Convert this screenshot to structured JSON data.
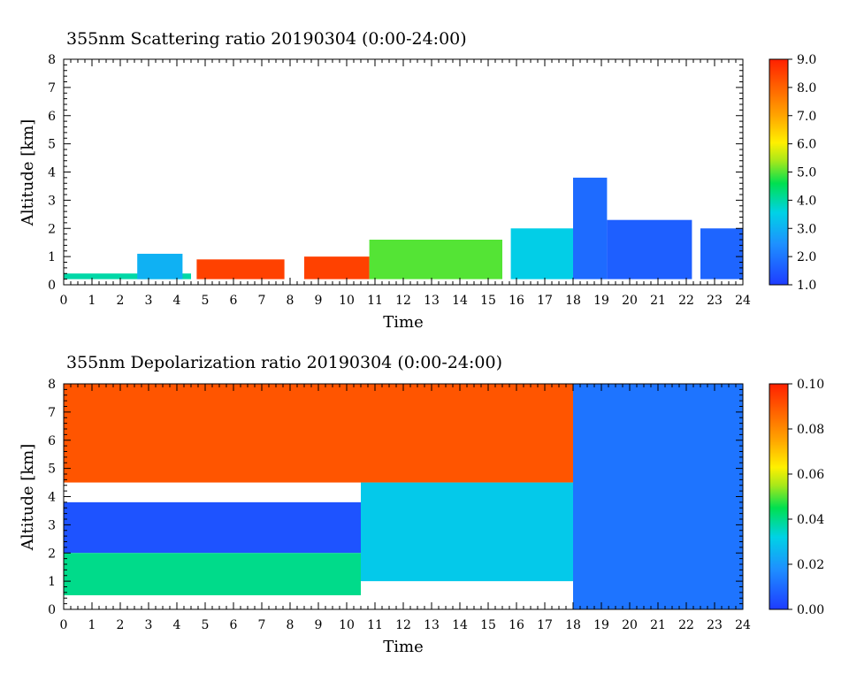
{
  "chart_data": [
    {
      "type": "heatmap",
      "title": "355nm Scattering ratio  20190304 (0:00-24:00)",
      "xlabel": "Time",
      "ylabel": "Altitude [km]",
      "xlim": [
        0,
        24
      ],
      "ylim": [
        0,
        8
      ],
      "x_ticks": [
        "0",
        "1",
        "2",
        "3",
        "4",
        "5",
        "6",
        "7",
        "8",
        "9",
        "10",
        "11",
        "12",
        "13",
        "14",
        "15",
        "16",
        "17",
        "18",
        "19",
        "20",
        "21",
        "22",
        "23",
        "24"
      ],
      "y_ticks": [
        "0",
        "1",
        "2",
        "3",
        "4",
        "5",
        "6",
        "7",
        "8"
      ],
      "colorbar": {
        "range": [
          1.0,
          9.0
        ],
        "tick_labels": [
          "1.0",
          "2.0",
          "3.0",
          "4.0",
          "5.0",
          "6.0",
          "7.0",
          "8.0",
          "9.0"
        ]
      },
      "grid": false,
      "features": [
        {
          "t0": 0,
          "t1": 4.5,
          "top_km": 0.4,
          "value": 4.0
        },
        {
          "t0": 2.6,
          "t1": 4.2,
          "top_km": 1.1,
          "value": 3.0
        },
        {
          "t0": 4.7,
          "t1": 7.8,
          "top_km": 0.9,
          "value": 8.5
        },
        {
          "t0": 8.5,
          "t1": 10.8,
          "top_km": 1.0,
          "value": 8.5
        },
        {
          "t0": 10.8,
          "t1": 15.5,
          "top_km": 1.6,
          "value": 5.0
        },
        {
          "t0": 15.8,
          "t1": 18.0,
          "top_km": 2.0,
          "value": 3.5
        },
        {
          "t0": 18.0,
          "t1": 19.2,
          "top_km": 3.8,
          "value": 1.8
        },
        {
          "t0": 19.2,
          "t1": 22.2,
          "top_km": 2.3,
          "value": 1.6
        },
        {
          "t0": 22.5,
          "t1": 24.0,
          "top_km": 2.0,
          "value": 1.7
        }
      ]
    },
    {
      "type": "heatmap",
      "title": "355nm Depolarization ratio  20190304 (0:00-24:00)",
      "xlabel": "Time",
      "ylabel": "Altitude [km]",
      "xlim": [
        0,
        24
      ],
      "ylim": [
        0,
        8
      ],
      "x_ticks": [
        "0",
        "1",
        "2",
        "3",
        "4",
        "5",
        "6",
        "7",
        "8",
        "9",
        "10",
        "11",
        "12",
        "13",
        "14",
        "15",
        "16",
        "17",
        "18",
        "19",
        "20",
        "21",
        "22",
        "23",
        "24"
      ],
      "y_ticks": [
        "0",
        "1",
        "2",
        "3",
        "4",
        "5",
        "6",
        "7",
        "8"
      ],
      "colorbar": {
        "range": [
          0.0,
          0.1
        ],
        "tick_labels": [
          "0.00",
          "0.02",
          "0.04",
          "0.06",
          "0.08",
          "0.10"
        ]
      },
      "grid": false,
      "features": [
        {
          "t0": 0,
          "t1": 18.0,
          "z0_km": 4.5,
          "z1_km": 8.0,
          "value": 0.09
        },
        {
          "t0": 0,
          "t1": 10.5,
          "z0_km": 2.0,
          "z1_km": 3.8,
          "value": 0.005
        },
        {
          "t0": 0,
          "t1": 10.5,
          "z0_km": 0.5,
          "z1_km": 2.0,
          "value": 0.04
        },
        {
          "t0": 10.5,
          "t1": 18.0,
          "z0_km": 1.0,
          "z1_km": 4.5,
          "value": 0.03
        },
        {
          "t0": 18.0,
          "t1": 24.0,
          "z0_km": 0.0,
          "z1_km": 8.0,
          "value": 0.012
        }
      ]
    }
  ]
}
